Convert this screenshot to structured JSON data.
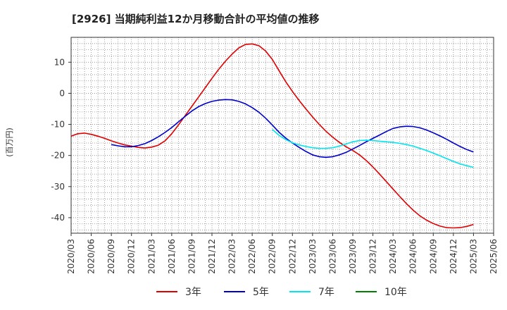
{
  "chart_data": {
    "type": "line",
    "title": "[2926]  当期純利益12か月移動合計の平均値の推移",
    "ylabel": "(百万円)",
    "xlabel": "",
    "ylim": [
      -45,
      18
    ],
    "yticks": [
      10,
      0,
      -10,
      -20,
      -30,
      -40
    ],
    "xticks": [
      "2020/03",
      "2020/06",
      "2020/09",
      "2020/12",
      "2021/03",
      "2021/06",
      "2021/09",
      "2021/12",
      "2022/03",
      "2022/06",
      "2022/09",
      "2022/12",
      "2023/03",
      "2023/06",
      "2023/09",
      "2023/12",
      "2024/03",
      "2024/06",
      "2024/09",
      "2024/12",
      "2025/03",
      "2025/06"
    ],
    "grid": true,
    "legend_position": "bottom",
    "series": [
      {
        "name": "3年",
        "color": "#e00000",
        "x": [
          "2020/03",
          "2020/04",
          "2020/05",
          "2020/06",
          "2020/07",
          "2020/08",
          "2020/09",
          "2020/10",
          "2020/11",
          "2020/12",
          "2021/01",
          "2021/02",
          "2021/03",
          "2021/04",
          "2021/05",
          "2021/06",
          "2021/07",
          "2021/08",
          "2021/09",
          "2021/10",
          "2021/11",
          "2021/12",
          "2022/01",
          "2022/02",
          "2022/03",
          "2022/04",
          "2022/05",
          "2022/06",
          "2022/07",
          "2022/08",
          "2022/09",
          "2022/10",
          "2022/11",
          "2022/12",
          "2023/01",
          "2023/02",
          "2023/03",
          "2023/04",
          "2023/05",
          "2023/06",
          "2023/07",
          "2023/08",
          "2023/09",
          "2023/10",
          "2023/11",
          "2023/12",
          "2024/01",
          "2024/02",
          "2024/03",
          "2024/04",
          "2024/05",
          "2024/06",
          "2024/07",
          "2024/08",
          "2024/09",
          "2024/10",
          "2024/11",
          "2024/12",
          "2025/01",
          "2025/02",
          "2025/03"
        ],
        "values": [
          -13.8,
          -13.0,
          -12.8,
          -13.2,
          -13.8,
          -14.5,
          -15.3,
          -16.0,
          -16.6,
          -17.0,
          -17.4,
          -17.6,
          -17.3,
          -16.7,
          -15.3,
          -13.0,
          -10.2,
          -7.2,
          -4.2,
          -1.2,
          1.8,
          4.8,
          7.7,
          10.3,
          12.6,
          14.6,
          15.7,
          15.9,
          15.3,
          13.6,
          10.9,
          7.3,
          3.7,
          0.6,
          -2.3,
          -5.0,
          -7.6,
          -10.0,
          -12.2,
          -14.1,
          -15.8,
          -17.2,
          -18.4,
          -19.8,
          -21.6,
          -23.7,
          -26.0,
          -28.4,
          -30.8,
          -33.2,
          -35.5,
          -37.6,
          -39.4,
          -40.8,
          -41.9,
          -42.7,
          -43.2,
          -43.3,
          -43.2,
          -42.8,
          -42.2
        ]
      },
      {
        "name": "5年",
        "color": "#0000cc",
        "x": [
          "2020/09",
          "2020/10",
          "2020/11",
          "2020/12",
          "2021/01",
          "2021/02",
          "2021/03",
          "2021/04",
          "2021/05",
          "2021/06",
          "2021/07",
          "2021/08",
          "2021/09",
          "2021/10",
          "2021/11",
          "2021/12",
          "2022/01",
          "2022/02",
          "2022/03",
          "2022/04",
          "2022/05",
          "2022/06",
          "2022/07",
          "2022/08",
          "2022/09",
          "2022/10",
          "2022/11",
          "2022/12",
          "2023/01",
          "2023/02",
          "2023/03",
          "2023/04",
          "2023/05",
          "2023/06",
          "2023/07",
          "2023/08",
          "2023/09",
          "2023/10",
          "2023/11",
          "2023/12",
          "2024/01",
          "2024/02",
          "2024/03",
          "2024/04",
          "2024/05",
          "2024/06",
          "2024/07",
          "2024/08",
          "2024/09",
          "2024/10",
          "2024/11",
          "2024/12",
          "2025/01",
          "2025/02",
          "2025/03"
        ],
        "values": [
          -16.5,
          -16.9,
          -17.2,
          -17.2,
          -16.8,
          -16.2,
          -15.2,
          -14.0,
          -12.6,
          -11.0,
          -9.2,
          -7.4,
          -5.7,
          -4.3,
          -3.3,
          -2.6,
          -2.2,
          -2.0,
          -2.1,
          -2.6,
          -3.4,
          -4.6,
          -6.1,
          -8.0,
          -10.2,
          -12.5,
          -14.4,
          -16.0,
          -17.4,
          -18.7,
          -19.8,
          -20.4,
          -20.6,
          -20.4,
          -19.8,
          -19.0,
          -17.9,
          -16.8,
          -15.6,
          -14.5,
          -13.4,
          -12.3,
          -11.3,
          -10.8,
          -10.6,
          -10.7,
          -11.1,
          -11.8,
          -12.7,
          -13.7,
          -14.8,
          -16.0,
          -17.1,
          -18.1,
          -18.9
        ]
      },
      {
        "name": "7年",
        "color": "#00e5ee",
        "x": [
          "2022/09",
          "2022/10",
          "2022/11",
          "2022/12",
          "2023/01",
          "2023/02",
          "2023/03",
          "2023/04",
          "2023/05",
          "2023/06",
          "2023/07",
          "2023/08",
          "2023/09",
          "2023/10",
          "2023/11",
          "2023/12",
          "2024/01",
          "2024/02",
          "2024/03",
          "2024/04",
          "2024/05",
          "2024/06",
          "2024/07",
          "2024/08",
          "2024/09",
          "2024/10",
          "2024/11",
          "2024/12",
          "2025/01",
          "2025/02",
          "2025/03"
        ],
        "values": [
          -11.6,
          -13.5,
          -14.9,
          -15.9,
          -16.6,
          -17.1,
          -17.5,
          -17.7,
          -17.7,
          -17.5,
          -17.0,
          -16.3,
          -15.6,
          -15.2,
          -15.1,
          -15.2,
          -15.4,
          -15.6,
          -15.8,
          -16.1,
          -16.5,
          -17.0,
          -17.7,
          -18.4,
          -19.2,
          -20.1,
          -21.0,
          -21.9,
          -22.7,
          -23.3,
          -23.8
        ]
      },
      {
        "name": "10年",
        "color": "#008000",
        "x": [],
        "values": []
      }
    ]
  }
}
